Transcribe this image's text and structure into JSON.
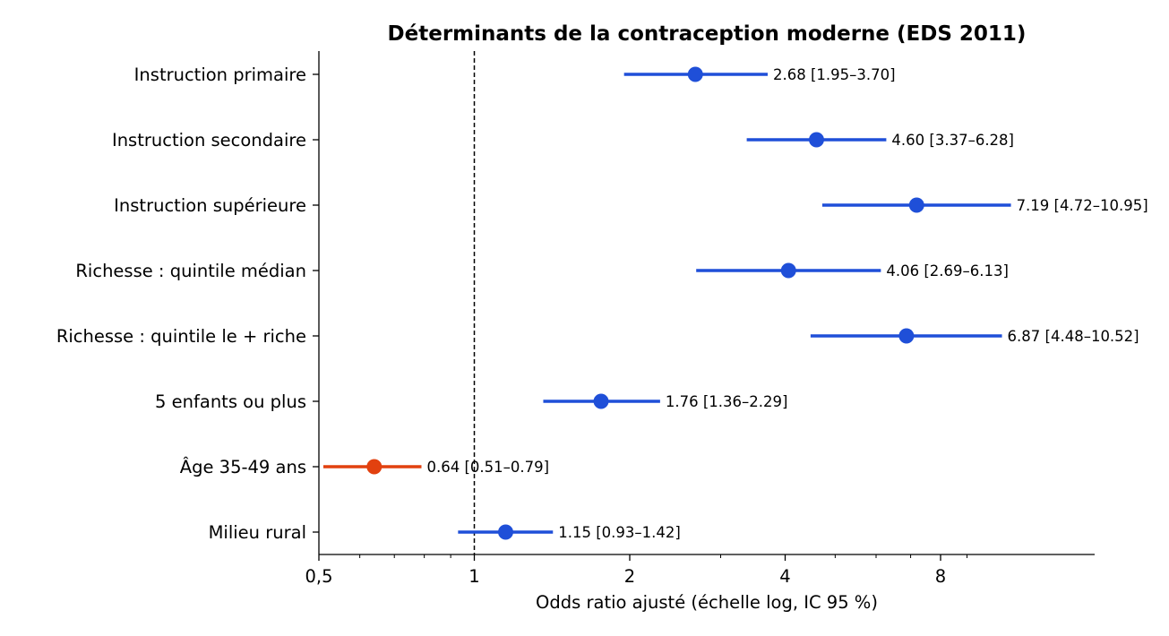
{
  "chart_data": {
    "type": "scatter",
    "title": "Déterminants de la contraception moderne (EDS 2011)",
    "xlabel": "Odds ratio ajusté (échelle log, IC 95 %)",
    "ylabel": "",
    "x_scale": "log2",
    "xlim": [
      0.5,
      19
    ],
    "x_ticks": [
      {
        "value": 0.5,
        "label": "0,5"
      },
      {
        "value": 1,
        "label": "1"
      },
      {
        "value": 2,
        "label": "2"
      },
      {
        "value": 4,
        "label": "4"
      },
      {
        "value": 8,
        "label": "8"
      }
    ],
    "x_minor_ticks": [
      0.6,
      0.7,
      0.8,
      0.9,
      3,
      5,
      6,
      7,
      9
    ],
    "reference_line": {
      "value": 1,
      "style": "dashed"
    },
    "grid": false,
    "colors": {
      "positive": "#1f4fd8",
      "negative": "#e2410f"
    },
    "categories": [
      "Instruction primaire",
      "Instruction secondaire",
      "Instruction supérieure",
      "Richesse : quintile médian",
      "Richesse : quintile le + riche",
      "5 enfants ou plus",
      "Âge 35-49 ans",
      "Milieu rural"
    ],
    "points": [
      {
        "or": 2.68,
        "low": 1.95,
        "high": 3.7,
        "label": "2.68 [1.95–3.70]"
      },
      {
        "or": 4.6,
        "low": 3.37,
        "high": 6.28,
        "label": "4.60 [3.37–6.28]"
      },
      {
        "or": 7.19,
        "low": 4.72,
        "high": 10.95,
        "label": "7.19 [4.72–10.95]"
      },
      {
        "or": 4.06,
        "low": 2.69,
        "high": 6.13,
        "label": "4.06 [2.69–6.13]"
      },
      {
        "or": 6.87,
        "low": 4.48,
        "high": 10.52,
        "label": "6.87 [4.48–10.52]"
      },
      {
        "or": 1.76,
        "low": 1.36,
        "high": 2.29,
        "label": "1.76 [1.36–2.29]"
      },
      {
        "or": 0.64,
        "low": 0.51,
        "high": 0.79,
        "label": "0.64 [0.51–0.79]"
      },
      {
        "or": 1.15,
        "low": 0.93,
        "high": 1.42,
        "label": "1.15 [0.93–1.42]"
      }
    ]
  }
}
